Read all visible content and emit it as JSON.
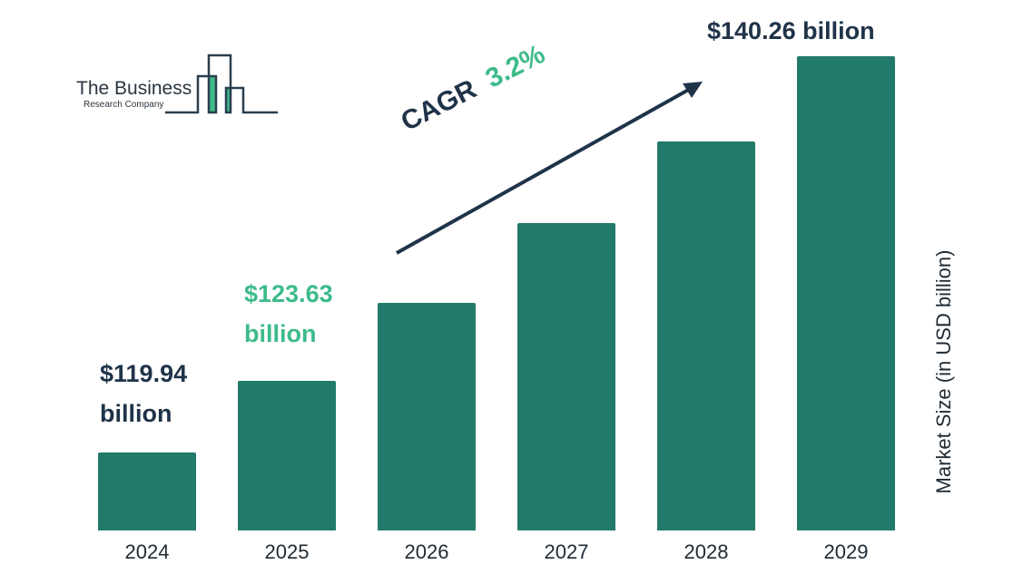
{
  "logo": {
    "line1": "The Business",
    "line2": "Research Company"
  },
  "chart_data": {
    "type": "bar",
    "categories": [
      "2024",
      "2025",
      "2026",
      "2027",
      "2028",
      "2029"
    ],
    "values": [
      119.94,
      123.63,
      127.6,
      131.7,
      135.9,
      140.26
    ],
    "ylabel": "Market Size (in USD billion)",
    "xlabel": "",
    "annotations": {
      "first_line1": "$119.94",
      "first_line2": "billion",
      "second_line1": "$123.63",
      "second_line2": "billion",
      "last": "$140.26 billion",
      "cagr_label": "CAGR",
      "cagr_value": "3.2%"
    },
    "colors": {
      "bar": "#217a6a",
      "dark_text": "#1f3349",
      "accent": "#3dbb8a"
    }
  }
}
